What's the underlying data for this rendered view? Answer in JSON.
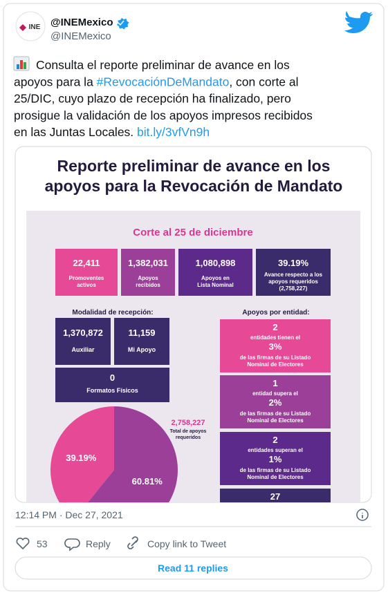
{
  "header": {
    "avatar_text": "INE",
    "name": "@INEMexico",
    "handle": "@INEMexico"
  },
  "tweet": {
    "lines": [
      [
        "Consulta el reporte preliminar de avance en los"
      ],
      [
        "apoyos para la ",
        "#RevocaciónDeMandato",
        ", con corte al"
      ],
      [
        "25/DIC, cuyo plazo de recepción ha finalizado, pero"
      ],
      [
        "prosigue la validación de los apoyos impresos recibidos"
      ],
      [
        "en las Juntas Locales. ",
        "bit.ly/3vfVn9h"
      ]
    ]
  },
  "image": {
    "title": [
      "Reporte preliminar de avance en los",
      "apoyos para la Revocación de Mandato"
    ],
    "cutoff": "Corte al 25 de diciembre",
    "stats": [
      {
        "value": "22,411",
        "label": [
          "Promoventes",
          "activos"
        ]
      },
      {
        "value": "1,382,031",
        "label": [
          "Apoyos",
          "recibidos"
        ]
      },
      {
        "value": "1,080,898",
        "label": [
          "Apoyos en",
          "Lista Nominal"
        ]
      },
      {
        "value": "39.19%",
        "label": [
          "Avance respecto a los",
          "apoyos requeridos",
          "(2,758,227)"
        ]
      }
    ],
    "reception_heading": "Modalidad de recepción:",
    "reception": [
      {
        "value": "1,370,872",
        "label": "Auxiliar"
      },
      {
        "value": "11,159",
        "label": "Mi Apoyo"
      },
      {
        "value": "0",
        "label": "Formatos Físicos"
      }
    ],
    "entity_heading": "Apoyos por entidad:",
    "entities": [
      {
        "lines": [
          "2",
          "entidades tienen el",
          "3%",
          "de las firmas de su Listado",
          "Nominal de Electores"
        ]
      },
      {
        "lines": [
          "1",
          "entidad supera el",
          "2%",
          "de las firmas de su Listado",
          "Nominal de Electores"
        ]
      },
      {
        "lines": [
          "2",
          "entidades superan el",
          "1%",
          "de las firmas de su Listado",
          "Nominal de Electores"
        ]
      },
      {
        "lines": [
          "27"
        ]
      }
    ],
    "pie": {
      "values": [
        39.19,
        60.81
      ],
      "value_labels": [
        "39.19%",
        "60.81%"
      ],
      "colors": [
        "#e64a97",
        "#9b3f98"
      ]
    },
    "total": {
      "value": "2,758,227",
      "label": [
        "Total de apoyos",
        "requeridos"
      ]
    }
  },
  "footer": {
    "timestamp": "12:14 PM · Dec 27, 2021",
    "likes": "53",
    "reply": "Reply",
    "copy": "Copy link to Tweet",
    "read_replies": "Read 11 replies"
  }
}
